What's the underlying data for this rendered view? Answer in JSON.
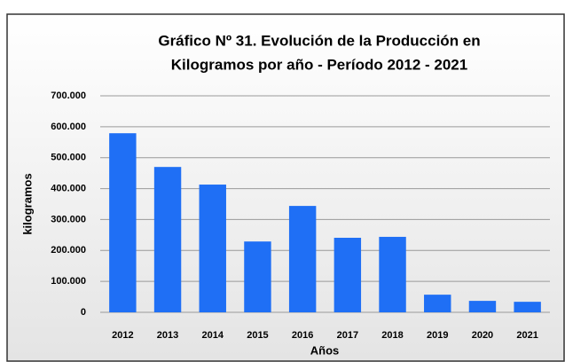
{
  "chart_data": {
    "type": "bar",
    "title": [
      "Gráfico Nº 31. Evolución de la Producción en",
      "Kilogramos por año - Período 2012 - 2021"
    ],
    "x_label": "Años",
    "y_label": "kilogramos",
    "categories": [
      "2012",
      "2013",
      "2014",
      "2015",
      "2016",
      "2017",
      "2018",
      "2019",
      "2020",
      "2021"
    ],
    "values": [
      579000,
      470000,
      413000,
      229000,
      344000,
      241000,
      244000,
      57000,
      37000,
      34000
    ],
    "color": "#1f6ff5",
    "ylim": [
      0,
      700000
    ],
    "yticks": [
      0,
      {
        "value": 100000,
        "label": "100.000"
      },
      {
        "value": 200000,
        "label": "200.000"
      },
      {
        "value": 300000,
        "label": "300.000"
      },
      {
        "value": 400000,
        "label": "400.000"
      },
      {
        "value": 500000,
        "label": "500.000"
      },
      {
        "value": 600000,
        "label": "600.000"
      },
      {
        "value": 700000,
        "label": "700.000"
      }
    ],
    "grid": true
  }
}
